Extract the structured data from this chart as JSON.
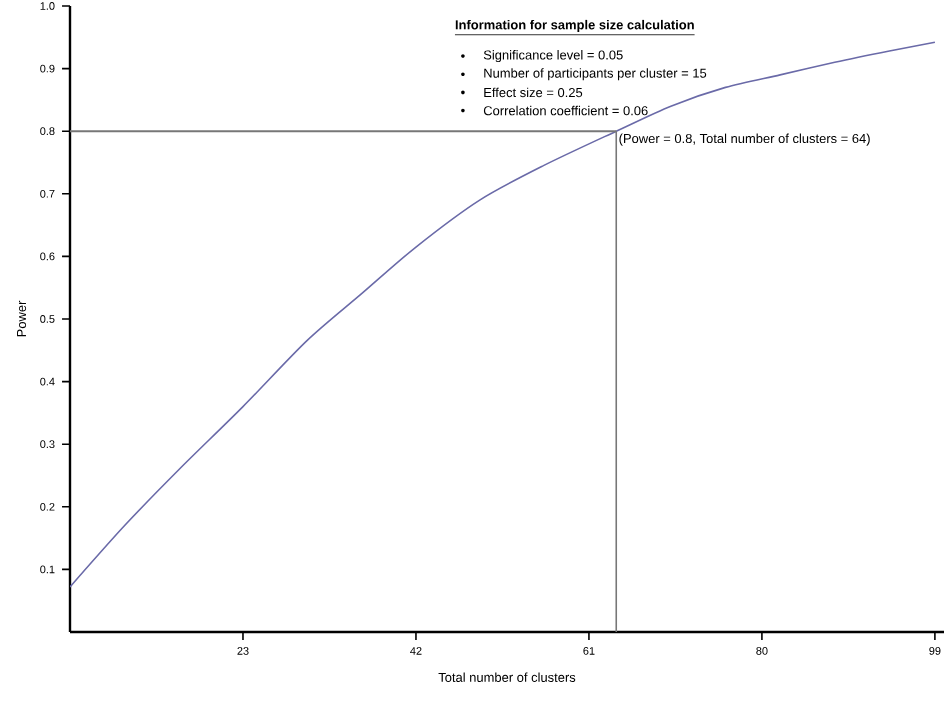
{
  "chart_data": {
    "type": "line",
    "xlabel": "Total number of clusters",
    "ylabel": "Power",
    "x": [
      4,
      10,
      16,
      23,
      30,
      36,
      42,
      49,
      56,
      64,
      70,
      76,
      82,
      88,
      94,
      99
    ],
    "series": [
      {
        "color": "#6a6aa8",
        "values": [
          0.072,
          0.17,
          0.26,
          0.36,
          0.465,
          0.54,
          0.615,
          0.69,
          0.745,
          0.8,
          0.84,
          0.87,
          0.89,
          0.91,
          0.928,
          0.942
        ]
      }
    ],
    "xlim": [
      4,
      100
    ],
    "xticks": [
      23,
      42,
      61,
      80,
      99
    ],
    "ylim": [
      0,
      1
    ],
    "yticks": [
      0.1,
      0.2,
      0.3,
      0.4,
      0.5,
      0.6,
      0.7,
      0.8,
      0.9,
      {
        "value": 1,
        "label": "1.0"
      }
    ],
    "ref_lines": [
      {
        "axis": "y",
        "value": 0.8,
        "color": "#777777"
      },
      {
        "axis": "x",
        "value": 64,
        "color": "#777777"
      }
    ],
    "annotations": [
      "Information for sample size calculation",
      "Significance level = 0.05",
      "Number of participants per cluster = 15",
      "Effect size = 0.25",
      "Correlation coefficient = 0.06",
      {
        "text": "(Power = 0.8, Total number of clusters = 64)",
        "x": 64,
        "y": 0.8
      }
    ],
    "grid": false,
    "marker": "none",
    "line_style": "solid"
  }
}
